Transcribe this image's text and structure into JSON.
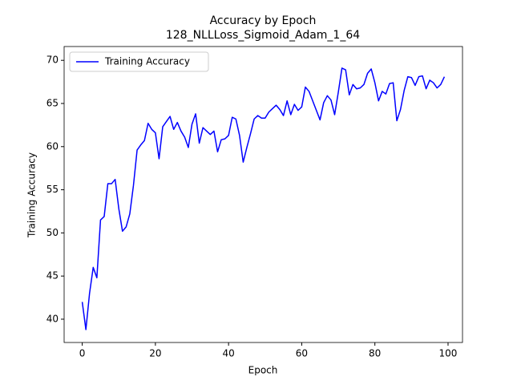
{
  "chart_data": {
    "type": "line",
    "title": "Accuracy by Epoch",
    "subtitle": "128_NLLLoss_Sigmoid_Adam_1_64",
    "xlabel": "Epoch",
    "ylabel": "Training Accuracy",
    "x": [
      0,
      1,
      2,
      3,
      4,
      5,
      6,
      7,
      8,
      9,
      10,
      11,
      12,
      13,
      14,
      15,
      16,
      17,
      18,
      19,
      20,
      21,
      22,
      23,
      24,
      25,
      26,
      27,
      28,
      29,
      30,
      31,
      32,
      33,
      34,
      35,
      36,
      37,
      38,
      39,
      40,
      41,
      42,
      43,
      44,
      45,
      46,
      47,
      48,
      49,
      50,
      51,
      52,
      53,
      54,
      55,
      56,
      57,
      58,
      59,
      60,
      61,
      62,
      63,
      64,
      65,
      66,
      67,
      68,
      69,
      70,
      71,
      72,
      73,
      74,
      75,
      76,
      77,
      78,
      79,
      80,
      81,
      82,
      83,
      84,
      85,
      86,
      87,
      88,
      89,
      90,
      91,
      92,
      93,
      94,
      95,
      96,
      97,
      98,
      99
    ],
    "series": [
      {
        "name": "Training Accuracy",
        "color": "#0000ff",
        "values": [
          42.0,
          38.8,
          43.0,
          46.0,
          44.8,
          51.5,
          51.9,
          55.7,
          55.7,
          56.2,
          52.8,
          50.2,
          50.7,
          52.2,
          55.5,
          59.6,
          60.2,
          60.7,
          62.7,
          62.0,
          61.6,
          58.6,
          62.3,
          62.9,
          63.5,
          62.0,
          62.8,
          61.8,
          61.1,
          59.9,
          62.6,
          63.8,
          60.4,
          62.2,
          61.8,
          61.4,
          61.8,
          59.4,
          60.8,
          60.9,
          61.3,
          63.4,
          63.2,
          61.3,
          58.2,
          59.9,
          61.5,
          63.2,
          63.6,
          63.3,
          63.3,
          64.0,
          64.4,
          64.8,
          64.3,
          63.6,
          65.3,
          63.7,
          64.9,
          64.2,
          64.6,
          66.9,
          66.4,
          65.3,
          64.2,
          63.1,
          65.1,
          65.9,
          65.4,
          63.7,
          66.3,
          69.1,
          68.9,
          66.0,
          67.2,
          66.7,
          66.8,
          67.2,
          68.5,
          69.0,
          67.4,
          65.3,
          66.4,
          66.1,
          67.3,
          67.4,
          63.0,
          64.3,
          66.5,
          68.1,
          68.0,
          67.1,
          68.1,
          68.2,
          66.7,
          67.7,
          67.4,
          66.8,
          67.2,
          68.1
        ]
      }
    ],
    "xlim": [
      -4.95,
      103.95
    ],
    "ylim": [
      37.3,
      71.6
    ],
    "xticks": [
      0,
      20,
      40,
      60,
      80,
      100
    ],
    "yticks": [
      40,
      45,
      50,
      55,
      60,
      65,
      70
    ],
    "legend": "upper left"
  }
}
